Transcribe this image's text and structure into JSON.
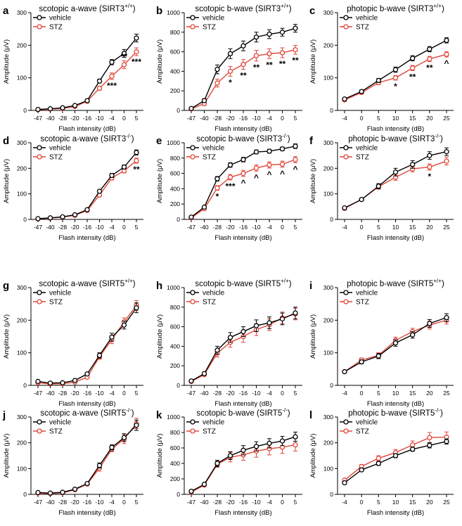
{
  "colors": {
    "vehicle": "#000000",
    "stz": "#e0473a",
    "axis": "#000000"
  },
  "legend": {
    "vehicle": "vehicle",
    "stz": "STZ"
  },
  "chart_data": [
    {
      "panel": "a",
      "type": "line",
      "title": "scotopic a-wave (SIRT3",
      "superscript": "+/+",
      "xlabel": "Flash intensity (dB)",
      "ylabel": "Amplitude (μV)",
      "categories": [
        "-47",
        "-40",
        "-28",
        "-20",
        "-16",
        "-10",
        "-4",
        "0",
        "5"
      ],
      "ylim": [
        0,
        300
      ],
      "yticks": [
        0,
        100,
        200,
        300
      ],
      "series": [
        {
          "name": "vehicle",
          "values": [
            3,
            5,
            8,
            15,
            30,
            90,
            148,
            175,
            222
          ],
          "err": [
            2,
            2,
            2,
            3,
            4,
            6,
            8,
            12,
            12
          ]
        },
        {
          "name": "STZ",
          "values": [
            2,
            4,
            6,
            12,
            28,
            68,
            105,
            140,
            180
          ],
          "err": [
            2,
            2,
            2,
            3,
            4,
            6,
            10,
            12,
            12
          ]
        }
      ],
      "annotations": [
        {
          "index": 6,
          "label": "***",
          "pos": "below"
        },
        {
          "index": 7,
          "label": "**",
          "pos": "above"
        },
        {
          "index": 8,
          "label": "***",
          "pos": "below"
        }
      ]
    },
    {
      "panel": "b",
      "type": "line",
      "title": "scotopic b-wave (SIRT3",
      "superscript": "+/+",
      "xlabel": "Flash intensity (dB)",
      "ylabel": "Amplitude (μV)",
      "categories": [
        "-47",
        "-40",
        "-28",
        "-20",
        "-16",
        "-10",
        "-4",
        "0",
        "5"
      ],
      "ylim": [
        0,
        1000
      ],
      "yticks": [
        0,
        200,
        400,
        600,
        800,
        1000
      ],
      "series": [
        {
          "name": "vehicle",
          "values": [
            20,
            100,
            420,
            580,
            660,
            750,
            780,
            800,
            840
          ],
          "err": [
            10,
            20,
            45,
            50,
            50,
            50,
            45,
            40,
            40
          ]
        },
        {
          "name": "STZ",
          "values": [
            15,
            70,
            280,
            400,
            470,
            560,
            580,
            590,
            620
          ],
          "err": [
            10,
            20,
            40,
            50,
            50,
            55,
            50,
            50,
            45
          ]
        }
      ],
      "annotations": [
        {
          "index": 3,
          "label": "*",
          "pos": "below"
        },
        {
          "index": 4,
          "label": "**",
          "pos": "below"
        },
        {
          "index": 5,
          "label": "**",
          "pos": "below"
        },
        {
          "index": 6,
          "label": "**",
          "pos": "below"
        },
        {
          "index": 7,
          "label": "**",
          "pos": "below"
        },
        {
          "index": 8,
          "label": "**",
          "pos": "below"
        }
      ]
    },
    {
      "panel": "c",
      "type": "line",
      "title": "photopic b-wave (SIRT3",
      "superscript": "+/+",
      "xlabel": "Flash intensity (dB)",
      "ylabel": "Amplitude (μV)",
      "categories": [
        "-4",
        "0",
        "5",
        "10",
        "15",
        "20",
        "25"
      ],
      "ylim": [
        0,
        300
      ],
      "yticks": [
        0,
        100,
        200,
        300
      ],
      "series": [
        {
          "name": "vehicle",
          "values": [
            35,
            58,
            92,
            125,
            160,
            188,
            215
          ],
          "err": [
            4,
            5,
            6,
            8,
            8,
            8,
            8
          ]
        },
        {
          "name": "STZ",
          "values": [
            32,
            55,
            85,
            100,
            130,
            158,
            172
          ],
          "err": [
            4,
            5,
            6,
            7,
            8,
            8,
            8
          ]
        }
      ],
      "annotations": [
        {
          "index": 3,
          "label": "*",
          "pos": "below"
        },
        {
          "index": 4,
          "label": "**",
          "pos": "below"
        },
        {
          "index": 5,
          "label": "**",
          "pos": "below"
        },
        {
          "index": 6,
          "label": "^",
          "pos": "below"
        }
      ]
    },
    {
      "panel": "d",
      "type": "line",
      "title": "scotopic a-wave (SIRT3",
      "superscript": "-/-",
      "xlabel": "Flash intensity (dB)",
      "ylabel": "Amplitude (μV)",
      "categories": [
        "-47",
        "-40",
        "-28",
        "-20",
        "-16",
        "-10",
        "-4",
        "0",
        "5"
      ],
      "ylim": [
        0,
        300
      ],
      "yticks": [
        0,
        100,
        200,
        300
      ],
      "series": [
        {
          "name": "vehicle",
          "values": [
            3,
            6,
            10,
            18,
            38,
            110,
            172,
            205,
            262
          ],
          "err": [
            2,
            2,
            2,
            3,
            4,
            6,
            8,
            8,
            10
          ]
        },
        {
          "name": "STZ",
          "values": [
            2,
            5,
            9,
            16,
            35,
            95,
            162,
            190,
            230
          ],
          "err": [
            2,
            2,
            2,
            3,
            4,
            6,
            8,
            8,
            10
          ]
        }
      ],
      "annotations": [
        {
          "index": 8,
          "label": "**",
          "pos": "below"
        }
      ]
    },
    {
      "panel": "e",
      "type": "line",
      "title": "scotopic b-wave (SIRT3",
      "superscript": "-/-",
      "xlabel": "Flash intensity (dB)",
      "ylabel": "Amplitude (μV)",
      "categories": [
        "-47",
        "-40",
        "-28",
        "-20",
        "-16",
        "-10",
        "-4",
        "0",
        "5"
      ],
      "ylim": [
        0,
        1000
      ],
      "yticks": [
        0,
        200,
        400,
        600,
        800,
        1000
      ],
      "series": [
        {
          "name": "vehicle",
          "values": [
            30,
            160,
            530,
            710,
            780,
            880,
            890,
            920,
            955
          ],
          "err": [
            10,
            15,
            30,
            30,
            30,
            25,
            25,
            25,
            30
          ]
        },
        {
          "name": "STZ",
          "values": [
            20,
            140,
            410,
            550,
            600,
            670,
            710,
            720,
            780
          ],
          "err": [
            10,
            15,
            30,
            35,
            40,
            40,
            40,
            40,
            40
          ]
        }
      ],
      "annotations": [
        {
          "index": 2,
          "label": "*",
          "pos": "below"
        },
        {
          "index": 3,
          "label": "***",
          "pos": "below"
        },
        {
          "index": 4,
          "label": "^",
          "pos": "below"
        },
        {
          "index": 5,
          "label": "^",
          "pos": "below"
        },
        {
          "index": 6,
          "label": "^",
          "pos": "below"
        },
        {
          "index": 7,
          "label": "^",
          "pos": "below"
        },
        {
          "index": 8,
          "label": "^",
          "pos": "below"
        }
      ]
    },
    {
      "panel": "f",
      "type": "line",
      "title": "photopic b-wave (SIRT3",
      "superscript": "-/-",
      "xlabel": "Flash intensity (dB)",
      "ylabel": "Amplitude (μV)",
      "categories": [
        "-4",
        "0",
        "5",
        "10",
        "15",
        "20",
        "25"
      ],
      "ylim": [
        0,
        300
      ],
      "yticks": [
        0,
        100,
        200,
        300
      ],
      "series": [
        {
          "name": "vehicle",
          "values": [
            45,
            78,
            130,
            185,
            215,
            250,
            265
          ],
          "err": [
            4,
            5,
            10,
            15,
            15,
            15,
            15
          ]
        },
        {
          "name": "STZ",
          "values": [
            43,
            78,
            128,
            165,
            198,
            205,
            228
          ],
          "err": [
            4,
            5,
            10,
            12,
            12,
            12,
            15
          ]
        }
      ],
      "annotations": [
        {
          "index": 5,
          "label": "*",
          "pos": "below"
        }
      ]
    },
    {
      "panel": "g",
      "type": "line",
      "title": "scotopic a-wave (SIRT5",
      "superscript": "+/+",
      "xlabel": "Flash intensity (dB)",
      "ylabel": "Amplitude (μV)",
      "categories": [
        "-47",
        "-40",
        "-28",
        "-20",
        "-16",
        "-10",
        "-4",
        "0",
        "5"
      ],
      "ylim": [
        0,
        300
      ],
      "yticks": [
        0,
        100,
        200,
        300
      ],
      "series": [
        {
          "name": "vehicle",
          "values": [
            12,
            7,
            8,
            15,
            35,
            92,
            148,
            185,
            238
          ],
          "err": [
            3,
            2,
            2,
            3,
            4,
            8,
            12,
            12,
            15
          ]
        },
        {
          "name": "STZ",
          "values": [
            8,
            4,
            5,
            10,
            25,
            88,
            140,
            195,
            245
          ],
          "err": [
            3,
            2,
            2,
            3,
            4,
            8,
            12,
            12,
            15
          ]
        }
      ],
      "annotations": []
    },
    {
      "panel": "h",
      "type": "line",
      "title": "scotopic b-wave (SIRT5",
      "superscript": "+/+",
      "xlabel": "Flash intensity (dB)",
      "ylabel": "Amplitude (μV)",
      "categories": [
        "-47",
        "-40",
        "-28",
        "-20",
        "-16",
        "-10",
        "-4",
        "0",
        "5"
      ],
      "ylim": [
        0,
        1000
      ],
      "yticks": [
        0,
        200,
        400,
        600,
        800,
        1000
      ],
      "series": [
        {
          "name": "vehicle",
          "values": [
            45,
            120,
            360,
            490,
            550,
            610,
            640,
            680,
            740
          ],
          "err": [
            10,
            15,
            40,
            50,
            50,
            60,
            60,
            60,
            60
          ]
        },
        {
          "name": "STZ",
          "values": [
            40,
            110,
            330,
            440,
            500,
            570,
            620,
            690,
            730
          ],
          "err": [
            10,
            15,
            40,
            50,
            60,
            60,
            60,
            60,
            60
          ]
        }
      ],
      "annotations": []
    },
    {
      "panel": "i",
      "type": "line",
      "title": "photopic b-wave (SIRT5",
      "superscript": "+/+",
      "xlabel": "Flash intensity (dB)",
      "ylabel": "Amplitude (μV)",
      "categories": [
        "-4",
        "0",
        "5",
        "10",
        "15",
        "20",
        "25"
      ],
      "ylim": [
        0,
        300
      ],
      "yticks": [
        0,
        100,
        200,
        300
      ],
      "series": [
        {
          "name": "vehicle",
          "values": [
            42,
            72,
            90,
            130,
            155,
            190,
            208
          ],
          "err": [
            3,
            6,
            8,
            10,
            10,
            12,
            12
          ]
        },
        {
          "name": "STZ",
          "values": [
            42,
            78,
            92,
            138,
            165,
            185,
            200
          ],
          "err": [
            3,
            6,
            8,
            10,
            10,
            12,
            12
          ]
        }
      ],
      "annotations": []
    },
    {
      "panel": "j",
      "type": "line",
      "title": "scotopic a-wave (SIRT5",
      "superscript": "-/-",
      "xlabel": "Flash intensity (dB)",
      "ylabel": "Amplitude (μV)",
      "categories": [
        "-47",
        "-40",
        "-28",
        "-20",
        "-16",
        "-10",
        "-4",
        "0",
        "5"
      ],
      "ylim": [
        0,
        300
      ],
      "yticks": [
        0,
        100,
        200,
        300
      ],
      "series": [
        {
          "name": "vehicle",
          "values": [
            7,
            5,
            8,
            20,
            42,
            112,
            182,
            220,
            268
          ],
          "err": [
            2,
            2,
            2,
            3,
            4,
            10,
            10,
            15,
            20
          ]
        },
        {
          "name": "STZ",
          "values": [
            5,
            3,
            6,
            18,
            40,
            102,
            175,
            215,
            275
          ],
          "err": [
            2,
            2,
            2,
            3,
            4,
            12,
            10,
            18,
            20
          ]
        }
      ],
      "annotations": []
    },
    {
      "panel": "k",
      "type": "line",
      "title": "scotopic b-wave (SIRT5",
      "superscript": "-/-",
      "xlabel": "Flash intensity (dB)",
      "ylabel": "Amplitude (μV)",
      "categories": [
        "-47",
        "-40",
        "-28",
        "-20",
        "-16",
        "-10",
        "-4",
        "0",
        "5"
      ],
      "ylim": [
        0,
        1000
      ],
      "yticks": [
        0,
        200,
        400,
        600,
        800,
        1000
      ],
      "series": [
        {
          "name": "vehicle",
          "values": [
            40,
            130,
            400,
            500,
            570,
            620,
            660,
            690,
            745
          ],
          "err": [
            15,
            15,
            40,
            50,
            60,
            60,
            60,
            60,
            60
          ]
        },
        {
          "name": "STZ",
          "values": [
            30,
            120,
            390,
            480,
            510,
            560,
            590,
            610,
            640
          ],
          "err": [
            15,
            15,
            40,
            60,
            70,
            80,
            80,
            80,
            80
          ]
        }
      ],
      "annotations": []
    },
    {
      "panel": "l",
      "type": "line",
      "title": "photopic b-wave (SIRT5",
      "superscript": "-/-",
      "xlabel": "Flash intensity (dB)",
      "ylabel": "Amplitude (μV)",
      "categories": [
        "-4",
        "0",
        "5",
        "10",
        "15",
        "20",
        "25"
      ],
      "ylim": [
        0,
        300
      ],
      "yticks": [
        0,
        100,
        200,
        300
      ],
      "series": [
        {
          "name": "vehicle",
          "values": [
            45,
            95,
            120,
            150,
            175,
            190,
            205
          ],
          "err": [
            4,
            6,
            8,
            8,
            8,
            10,
            10
          ]
        },
        {
          "name": "STZ",
          "values": [
            55,
            108,
            140,
            162,
            192,
            220,
            222
          ],
          "err": [
            4,
            8,
            10,
            12,
            15,
            20,
            20
          ]
        }
      ],
      "annotations": []
    }
  ]
}
